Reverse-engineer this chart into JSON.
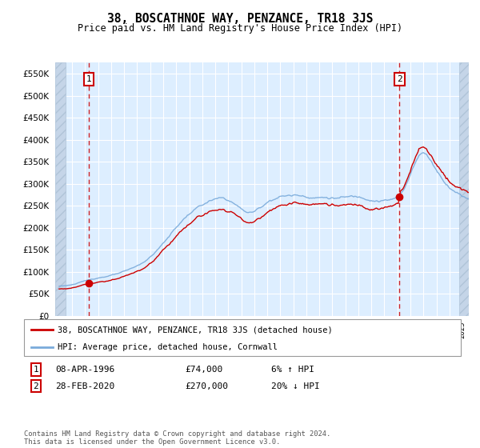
{
  "title": "38, BOSCATHNOE WAY, PENZANCE, TR18 3JS",
  "subtitle": "Price paid vs. HM Land Registry's House Price Index (HPI)",
  "ylim": [
    0,
    575000
  ],
  "xlim_start": 1993.7,
  "xlim_end": 2025.5,
  "sale1_year": 1996.27,
  "sale1_price": 74000,
  "sale2_year": 2020.16,
  "sale2_price": 270000,
  "legend_line1": "38, BOSCATHNOE WAY, PENZANCE, TR18 3JS (detached house)",
  "legend_line2": "HPI: Average price, detached house, Cornwall",
  "annotation1_label": "1",
  "annotation1_date": "08-APR-1996",
  "annotation1_price": "£74,000",
  "annotation1_hpi": "6% ↑ HPI",
  "annotation2_label": "2",
  "annotation2_date": "28-FEB-2020",
  "annotation2_price": "£270,000",
  "annotation2_hpi": "20% ↓ HPI",
  "footer": "Contains HM Land Registry data © Crown copyright and database right 2024.\nThis data is licensed under the Open Government Licence v3.0.",
  "bg_plot": "#ddeeff",
  "bg_hatch_face": "#c5d5e8",
  "hatch_pattern": "///",
  "hatch_edge": "#b0c4d8",
  "grid_color": "#ffffff",
  "red_line_color": "#cc0000",
  "blue_line_color": "#7aabdb",
  "vline_color": "#cc0000",
  "marker_color": "#cc0000",
  "box_color": "#cc0000",
  "hatch_left_end": 1994.5,
  "hatch_right_start": 2024.75
}
